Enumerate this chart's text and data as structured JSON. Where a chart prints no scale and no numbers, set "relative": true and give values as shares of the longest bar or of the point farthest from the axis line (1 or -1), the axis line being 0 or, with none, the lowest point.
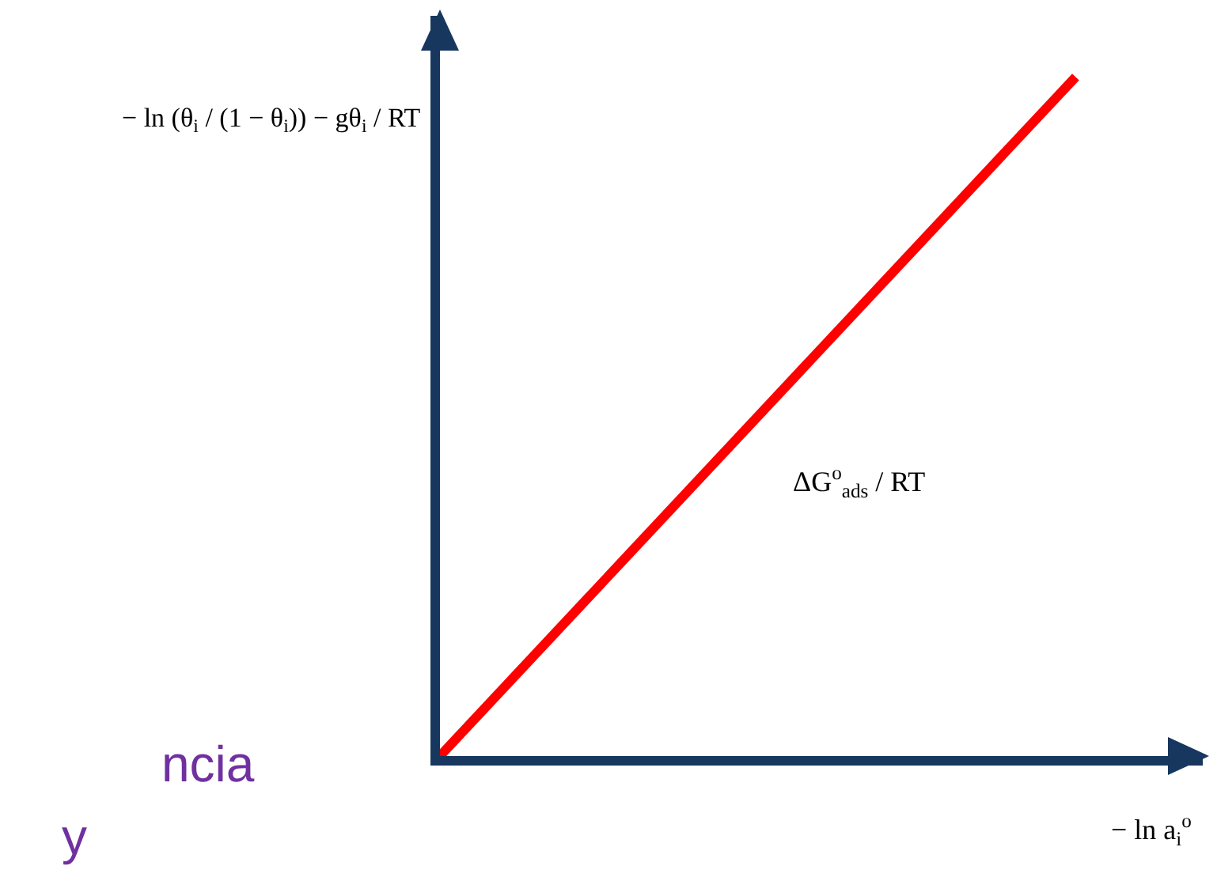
{
  "chart_data": {
    "type": "line",
    "relative": true,
    "categories": [
      null,
      null
    ],
    "series": [
      {
        "color": "#ff0000",
        "values": [
          0,
          1
        ]
      }
    ],
    "xlabel": "− ln a$_{i}$$^{o}$",
    "ylabel": "− ln (θ$_{i}$ / (1 − θ$_{i}$)) − gθ$_{i}$ / RT",
    "annotations": [
      "ΔG$^{o}$$_{ads}$ / RT",
      "ncia",
      "y"
    ]
  }
}
